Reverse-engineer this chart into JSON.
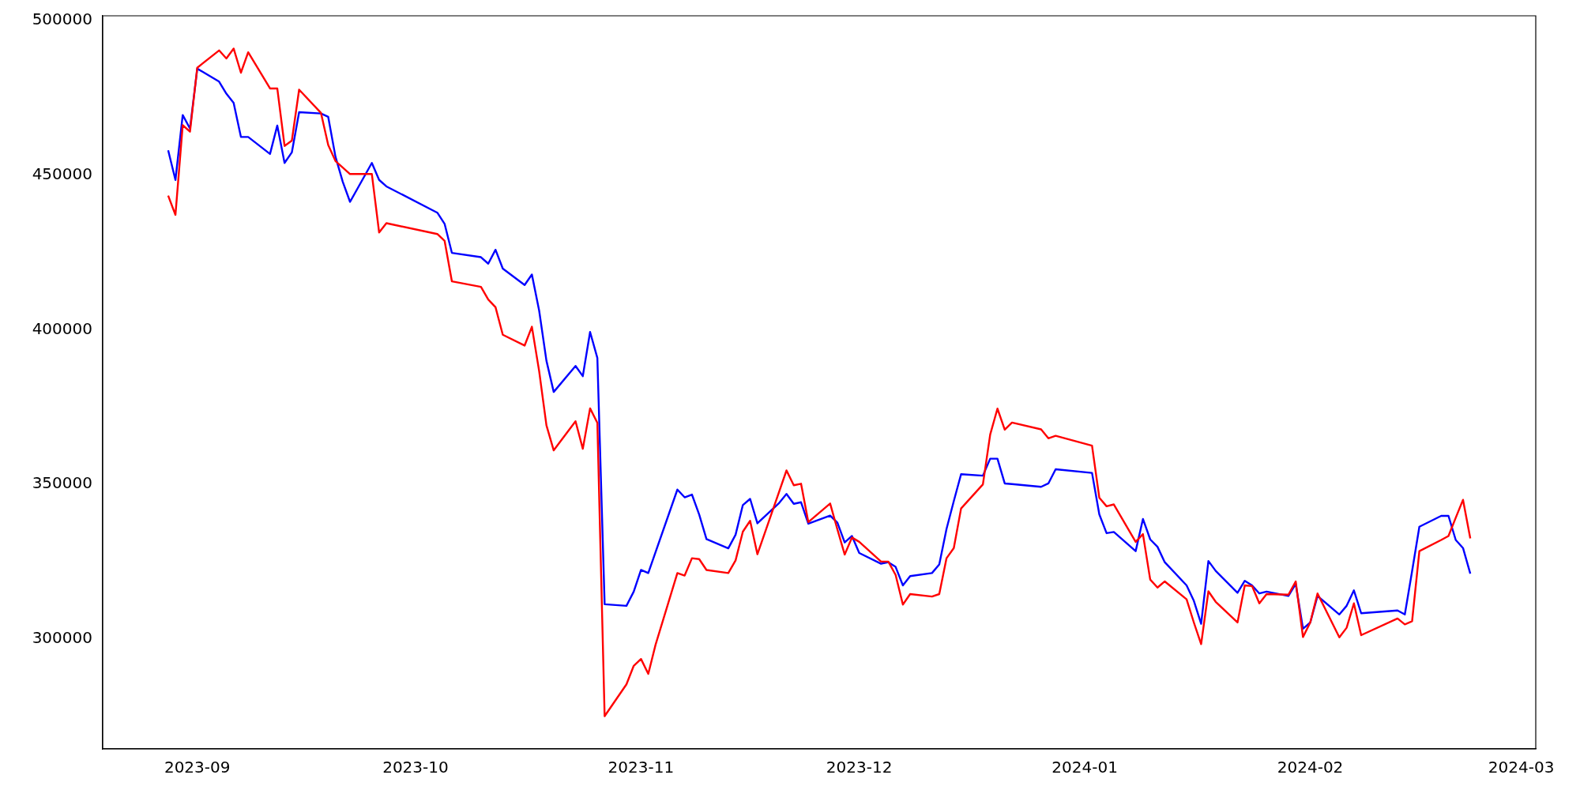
{
  "chart_data": {
    "type": "line",
    "x": [
      "2023-08-28",
      "2023-08-29",
      "2023-08-30",
      "2023-08-31",
      "2023-09-01",
      "2023-09-04",
      "2023-09-05",
      "2023-09-06",
      "2023-09-07",
      "2023-09-08",
      "2023-09-11",
      "2023-09-12",
      "2023-09-13",
      "2023-09-14",
      "2023-09-15",
      "2023-09-18",
      "2023-09-19",
      "2023-09-20",
      "2023-09-21",
      "2023-09-22",
      "2023-09-25",
      "2023-09-26",
      "2023-09-27",
      "2023-10-04",
      "2023-10-05",
      "2023-10-06",
      "2023-10-10",
      "2023-10-11",
      "2023-10-12",
      "2023-10-13",
      "2023-10-16",
      "2023-10-17",
      "2023-10-18",
      "2023-10-19",
      "2023-10-20",
      "2023-10-23",
      "2023-10-24",
      "2023-10-25",
      "2023-10-26",
      "2023-10-27",
      "2023-10-30",
      "2023-10-31",
      "2023-11-01",
      "2023-11-02",
      "2023-11-03",
      "2023-11-06",
      "2023-11-07",
      "2023-11-08",
      "2023-11-09",
      "2023-11-10",
      "2023-11-13",
      "2023-11-14",
      "2023-11-15",
      "2023-11-16",
      "2023-11-17",
      "2023-11-20",
      "2023-11-21",
      "2023-11-22",
      "2023-11-23",
      "2023-11-24",
      "2023-11-27",
      "2023-11-28",
      "2023-11-29",
      "2023-11-30",
      "2023-12-01",
      "2023-12-04",
      "2023-12-05",
      "2023-12-06",
      "2023-12-07",
      "2023-12-08",
      "2023-12-11",
      "2023-12-12",
      "2023-12-13",
      "2023-12-14",
      "2023-12-15",
      "2023-12-18",
      "2023-12-19",
      "2023-12-20",
      "2023-12-21",
      "2023-12-22",
      "2023-12-26",
      "2023-12-27",
      "2023-12-28",
      "2024-01-02",
      "2024-01-03",
      "2024-01-04",
      "2024-01-05",
      "2024-01-08",
      "2024-01-09",
      "2024-01-10",
      "2024-01-11",
      "2024-01-12",
      "2024-01-15",
      "2024-01-16",
      "2024-01-17",
      "2024-01-18",
      "2024-01-19",
      "2024-01-22",
      "2024-01-23",
      "2024-01-24",
      "2024-01-25",
      "2024-01-26",
      "2024-01-29",
      "2024-01-30",
      "2024-01-31",
      "2024-02-01",
      "2024-02-02",
      "2024-02-05",
      "2024-02-06",
      "2024-02-07",
      "2024-02-08",
      "2024-02-13",
      "2024-02-14",
      "2024-02-15",
      "2024-02-16",
      "2024-02-19",
      "2024-02-20",
      "2024-02-21",
      "2024-02-22",
      "2024-02-23"
    ],
    "series": [
      {
        "color": "#ff0000",
        "values": [
          443400,
          437200,
          466200,
          464100,
          484800,
          490400,
          487800,
          491000,
          483200,
          489800,
          478100,
          478100,
          459500,
          461200,
          477700,
          470200,
          459800,
          454600,
          452500,
          450400,
          450400,
          431500,
          434500,
          431000,
          428800,
          415700,
          413900,
          409800,
          407300,
          398400,
          394900,
          401000,
          386600,
          369100,
          361000,
          370400,
          361500,
          374600,
          369900,
          275000,
          285300,
          291300,
          293500,
          288700,
          298100,
          321300,
          320500,
          326100,
          325800,
          322300,
          321300,
          325400,
          334700,
          338200,
          327400,
          347700,
          354500,
          349700,
          350200,
          337800,
          343800,
          335400,
          327300,
          332800,
          331400,
          325000,
          325000,
          320700,
          311100,
          314500,
          313700,
          314500,
          326100,
          329400,
          342200,
          350000,
          366100,
          374500,
          367700,
          370000,
          367800,
          364900,
          365700,
          362500,
          345700,
          342900,
          343500,
          331400,
          333900,
          319200,
          316600,
          318600,
          312800,
          305300,
          298300,
          315400,
          312000,
          305300,
          317300,
          317100,
          311500,
          314500,
          314300,
          318600,
          300600,
          305300,
          314700,
          300500,
          303600,
          311500,
          301200,
          306600,
          304700,
          305700,
          328400,
          332000,
          333300,
          339200,
          345000,
          332500
        ]
      },
      {
        "color": "#0000ff",
        "values": [
          458100,
          448500,
          469500,
          465100,
          484500,
          480300,
          476400,
          473400,
          462400,
          462400,
          456900,
          466100,
          454000,
          457400,
          470400,
          470000,
          468900,
          456000,
          447900,
          441400,
          454000,
          448500,
          446400,
          437900,
          434300,
          424900,
          423500,
          421400,
          425900,
          419800,
          414500,
          417900,
          406200,
          390000,
          379900,
          388300,
          385000,
          399300,
          390900,
          311200,
          310700,
          315300,
          322300,
          321300,
          328100,
          348300,
          345800,
          346700,
          340200,
          332300,
          329300,
          333700,
          343300,
          345300,
          337400,
          344000,
          346900,
          343700,
          344200,
          337300,
          339900,
          337600,
          331200,
          333300,
          327800,
          324300,
          324800,
          323300,
          317300,
          320300,
          321300,
          324100,
          335600,
          344600,
          353300,
          352800,
          358300,
          358300,
          350300,
          350100,
          349200,
          350300,
          354900,
          353700,
          340300,
          334200,
          334600,
          328400,
          338800,
          332200,
          329800,
          324800,
          317300,
          312300,
          304900,
          325200,
          322000,
          314900,
          318800,
          317300,
          314700,
          315300,
          313900,
          317800,
          303300,
          305300,
          313900,
          307900,
          310700,
          315700,
          308300,
          309200,
          307900,
          321900,
          336300,
          339800,
          339800,
          332000,
          329400,
          321100
        ]
      }
    ],
    "xlim": [
      "2023-08-19",
      "2024-03-03"
    ],
    "xticks": [
      "2023-09",
      "2023-10",
      "2023-11",
      "2023-12",
      "2024-01",
      "2024-02",
      "2024-03"
    ],
    "ylim": [
      264400,
      501600
    ],
    "yticks": [
      300000,
      350000,
      400000,
      450000,
      500000
    ],
    "grid": false,
    "legend": false,
    "marker": "none",
    "line_style": "solid"
  }
}
